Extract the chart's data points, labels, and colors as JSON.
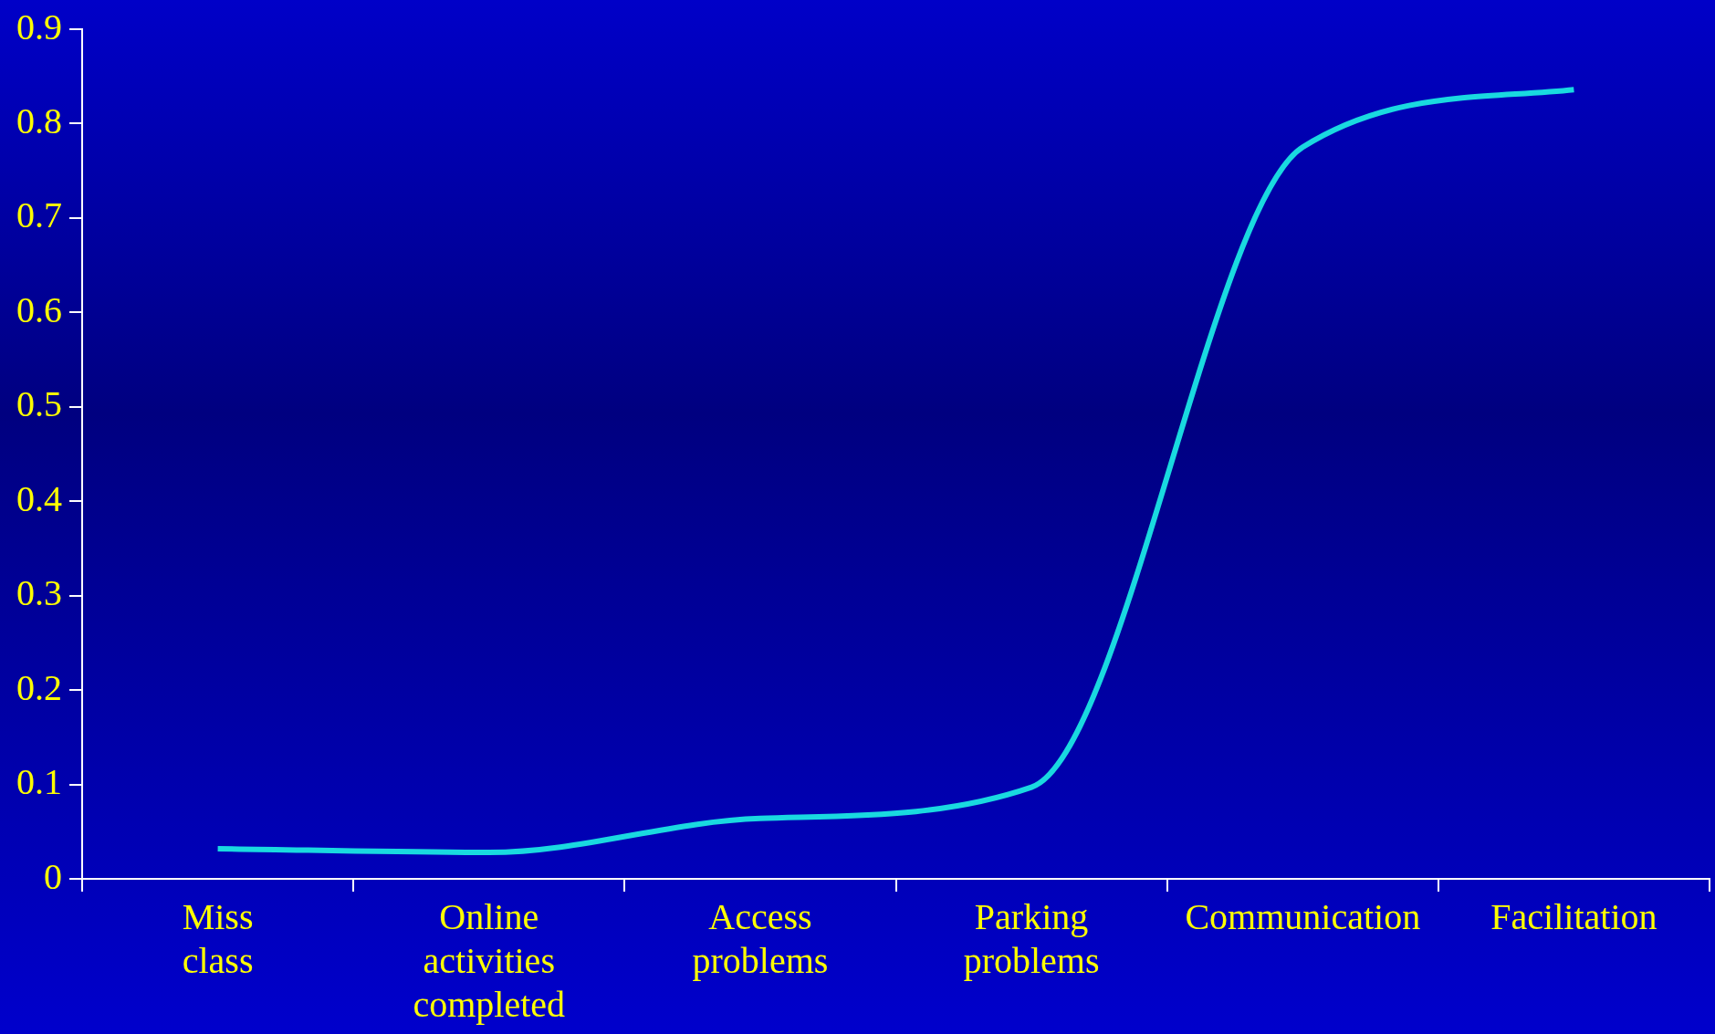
{
  "chart_data": {
    "type": "line",
    "categories": [
      "Miss class",
      "Online activities completed",
      "Access problems",
      "Parking problems",
      "Communication",
      "Facilitation"
    ],
    "series": [
      {
        "color": "#19d9e0",
        "values": [
          0.032,
          0.028,
          0.064,
          0.097,
          0.775,
          0.836
        ]
      }
    ],
    "ylim": [
      0,
      0.9
    ],
    "yticks": [
      0,
      0.1,
      0.2,
      0.3,
      0.4,
      0.5,
      0.6,
      0.7,
      0.8,
      0.9
    ],
    "grid": false,
    "legend": false,
    "marker": "none",
    "line_style": "solid"
  }
}
